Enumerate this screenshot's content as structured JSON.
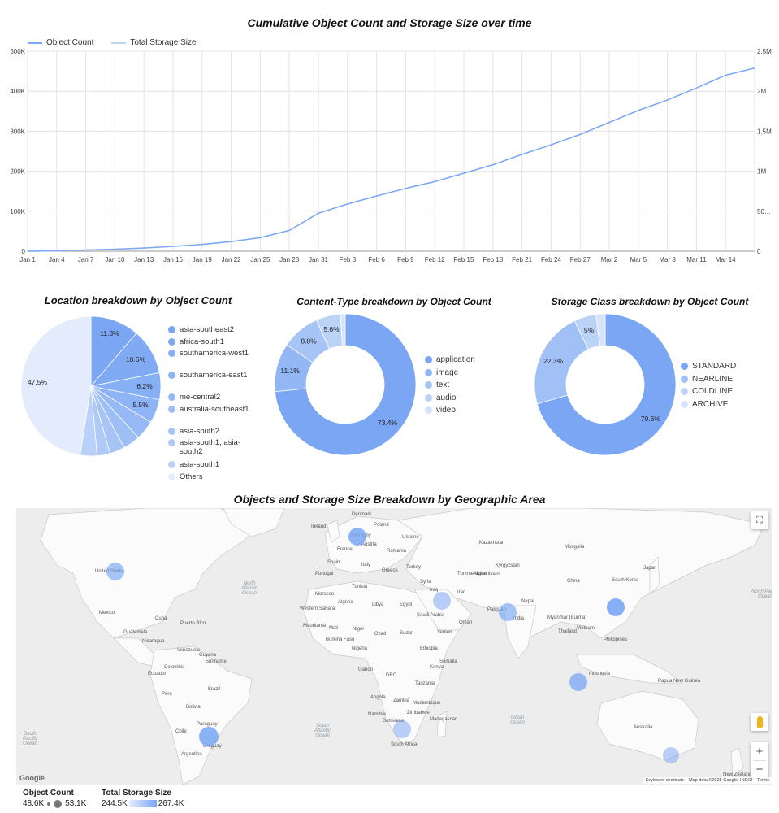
{
  "colors": {
    "accent": "#7aa6f4",
    "light": "#a9c8f7",
    "bubble": "#8fb3f5"
  },
  "line": {
    "title": "Cumulative Object Count and Storage Size over time",
    "legend": [
      "Object Count",
      "Total Storage Size"
    ],
    "y_left_ticks": [
      "0",
      "100K",
      "200K",
      "300K",
      "400K",
      "500K"
    ],
    "y_right_ticks": [
      "0",
      "50…",
      "1M",
      "1.5M",
      "2M",
      "2.5M"
    ],
    "x_ticks": [
      "Jan 1",
      "Jan 4",
      "Jan 7",
      "Jan 10",
      "Jan 13",
      "Jan 16",
      "Jan 19",
      "Jan 22",
      "Jan 25",
      "Jan 28",
      "Jan 31",
      "Feb 3",
      "Feb 6",
      "Feb 9",
      "Feb 12",
      "Feb 15",
      "Feb 18",
      "Feb 21",
      "Feb 24",
      "Feb 27",
      "Mar 2",
      "Mar 5",
      "Mar 8",
      "Mar 11",
      "Mar 14"
    ]
  },
  "chart_data": [
    {
      "type": "line",
      "title": "Cumulative Object Count and Storage Size over time",
      "x": [
        "Jan 1",
        "Jan 4",
        "Jan 7",
        "Jan 10",
        "Jan 13",
        "Jan 16",
        "Jan 19",
        "Jan 22",
        "Jan 25",
        "Jan 28",
        "Jan 31",
        "Feb 3",
        "Feb 6",
        "Feb 9",
        "Feb 12",
        "Feb 15",
        "Feb 18",
        "Feb 21",
        "Feb 24",
        "Feb 27",
        "Mar 2",
        "Mar 5",
        "Mar 8",
        "Mar 11",
        "Mar 14",
        "Mar 16"
      ],
      "series": [
        {
          "name": "Object Count",
          "axis": "left",
          "values": [
            0,
            1000,
            3000,
            5000,
            8000,
            12000,
            17000,
            24000,
            34000,
            52000,
            95000,
            118000,
            138000,
            157000,
            174000,
            195000,
            216000,
            242000,
            266000,
            292000,
            322000,
            352000,
            378000,
            408000,
            440000,
            458000
          ]
        },
        {
          "name": "Total Storage Size",
          "axis": "right",
          "values": [
            0,
            5000,
            15000,
            25000,
            40000,
            60000,
            85000,
            120000,
            170000,
            260000,
            475000,
            590000,
            690000,
            785000,
            870000,
            975000,
            1080000,
            1210000,
            1330000,
            1460000,
            1610000,
            1760000,
            1890000,
            2040000,
            2200000,
            2290000
          ]
        }
      ],
      "ylim_left": [
        0,
        500000
      ],
      "ylim_right": [
        0,
        2500000
      ]
    },
    {
      "type": "pie",
      "title": "Location breakdown by Object Count",
      "labels": [
        "asia-southeast2",
        "africa-south1",
        "southamerica-west1",
        "southamerica-east1",
        "me-central2",
        "australia-southeast1",
        "asia-south2",
        "asia-south1, asia-south2",
        "asia-south1",
        "Others"
      ],
      "values": [
        11.3,
        10.6,
        6.2,
        5.5,
        4.5,
        4,
        3.5,
        3,
        3.9,
        47.5
      ],
      "shown_labels": [
        "11.3%",
        "10.6%",
        "6.2%",
        "5.5%",
        "",
        "",
        "",
        "",
        "",
        "47.5%"
      ]
    },
    {
      "type": "pie",
      "title": "Content-Type breakdown by Object Count",
      "labels": [
        "application",
        "image",
        "text",
        "audio",
        "video"
      ],
      "values": [
        73.4,
        11.1,
        8.8,
        5.6,
        1.1
      ],
      "shown_labels": [
        "73.4%",
        "11.1%",
        "8.8%",
        "5.6%",
        ""
      ]
    },
    {
      "type": "pie",
      "title": "Storage Class breakdown by Object Count",
      "labels": [
        "STANDARD",
        "NEARLINE",
        "COLDLINE",
        "ARCHIVE"
      ],
      "values": [
        70.6,
        22.3,
        5,
        2.1
      ],
      "shown_labels": [
        "70.6%",
        "22.3%",
        "5%",
        ""
      ]
    }
  ],
  "pies": {
    "location": {
      "title": "Location breakdown by Object Count",
      "legend": [
        "asia-southeast2",
        "africa-south1",
        "southamerica-west1",
        "southamerica-east1",
        "me-central2",
        "australia-southeast1",
        "asia-south2",
        "asia-south1, asia-south2",
        "asia-south1",
        "Others"
      ]
    },
    "content": {
      "title": "Content-Type breakdown by Object Count",
      "legend": [
        "application",
        "image",
        "text",
        "audio",
        "video"
      ]
    },
    "storage": {
      "title": "Storage Class breakdown by Object Count",
      "legend": [
        "STANDARD",
        "NEARLINE",
        "COLDLINE",
        "ARCHIVE"
      ]
    }
  },
  "map": {
    "title": "Objects and Storage Size Breakdown by Geographic Area",
    "attribution": "Map data ©2025 Google, INEGI",
    "shortcuts": "Keyboard shortcuts",
    "terms": "Terms",
    "logo": "Google",
    "labels": [
      "Ireland",
      "Denmark",
      "Poland",
      "Ukraine",
      "France",
      "Romania",
      "Kazakhstan",
      "Mongolia",
      "Spain",
      "Portugal",
      "Italy",
      "Greece",
      "Turkey",
      "Kyrgyzstan",
      "Turkmenistan",
      "Tunisia",
      "Syria",
      "Iraq",
      "Iran",
      "Afghanistan",
      "China",
      "South Korea",
      "Morocco",
      "Algeria",
      "Libya",
      "Egypt",
      "Pakistan",
      "Nepal",
      "Western Sahara",
      "Saudi Arabia",
      "Oman",
      "Myanmar (Burma)",
      "Thailand",
      "Mauritania",
      "Mali",
      "Niger",
      "Chad",
      "Sudan",
      "Yemen",
      "Burkina Faso",
      "Nigeria",
      "Ethiopia",
      "Philippines",
      "Gabon",
      "Kenya",
      "Somalia",
      "Indonesia",
      "DRC",
      "Tanzania",
      "Papua New Guinea",
      "Angola",
      "Zambia",
      "Mozambique",
      "Namibia",
      "Botswana",
      "Madagascar",
      "Australia",
      "South Africa",
      "Zimbabwe",
      "United States",
      "Mexico",
      "Cuba",
      "Puerto Rico",
      "Guatemala",
      "Nicaragua",
      "Venezuela",
      "Guyana",
      "Suriname",
      "Colombia",
      "Ecuador",
      "Brazil",
      "Peru",
      "Bolivia",
      "Paraguay",
      "Chile",
      "Uruguay",
      "Argentina",
      "Austria",
      "Germany",
      "India",
      "Japan",
      "Vietnam",
      "New Zealand"
    ],
    "oceans": [
      "North Atlantic Ocean",
      "South Atlantic Ocean",
      "Indian Ocean",
      "South Pacific Ocean",
      "North Pacific Ocean"
    ],
    "legend": {
      "count_title": "Object Count",
      "count_min": "48.6K",
      "count_max": "53.1K",
      "size_title": "Total Storage Size",
      "size_min": "244.5K",
      "size_max": "267.4K"
    }
  }
}
